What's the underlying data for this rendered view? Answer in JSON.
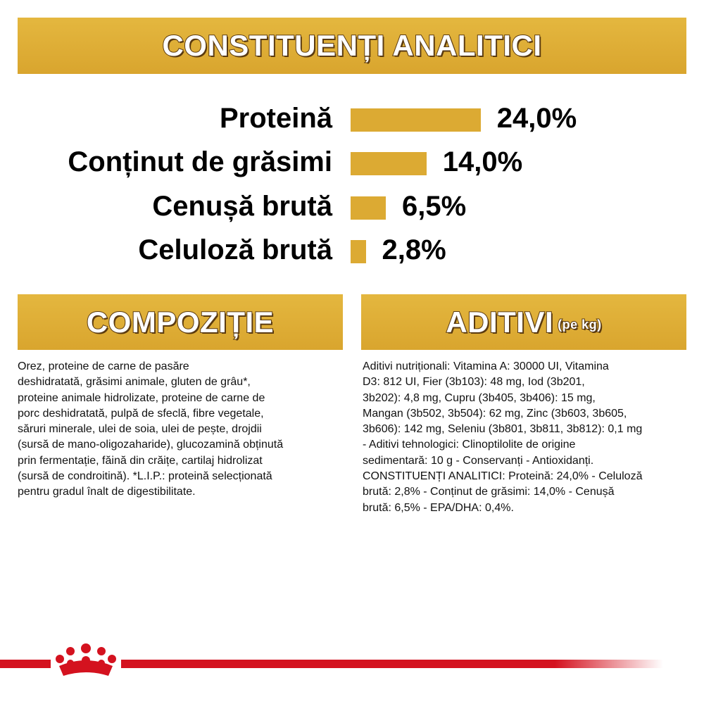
{
  "header": {
    "title": "CONSTITUENȚI ANALITICI"
  },
  "nutrients": [
    {
      "label": "Proteină",
      "value": 24.0,
      "value_label": "24,0%"
    },
    {
      "label": "Conținut de grăsimi",
      "value": 14.0,
      "value_label": "14,0%"
    },
    {
      "label": "Cenușă brută",
      "value": 6.5,
      "value_label": "6,5%"
    },
    {
      "label": "Celuloză brută",
      "value": 2.8,
      "value_label": "2,8%"
    }
  ],
  "composition": {
    "title": "COMPOZIȚIE",
    "lines": [
      "Orez, proteine de carne de pasăre",
      "deshidratată, grăsimi animale, gluten de grâu*,",
      "proteine animale hidrolizate, proteine de carne de",
      "porc deshidratată, pulpă de sfeclă, fibre vegetale,",
      "săruri minerale, ulei de soia, ulei de pește, drojdii",
      "(sursă de mano-oligozaharide), glucozamină obținută",
      "prin fermentație, făină din crăițe, cartilaj hidrolizat",
      "(sursă de condroitină). *L.I.P.: proteină selecționată",
      "pentru gradul înalt de digestibilitate."
    ]
  },
  "additives": {
    "title": "ADITIVI",
    "subtitle": "(pe kg)",
    "lines": [
      "Aditivi nutriționali: Vitamina A: 30000 UI, Vitamina",
      "D3: 812 UI, Fier (3b103): 48 mg, Iod (3b201,",
      "3b202): 4,8 mg, Cupru (3b405, 3b406): 15 mg,",
      "Mangan (3b502, 3b504): 62 mg, Zinc (3b603, 3b605,",
      "3b606): 142 mg, Seleniu (3b801, 3b811, 3b812): 0,1 mg",
      "- Aditivi tehnologici: Clinoptilolite de origine",
      "sedimentară: 10 g - Conservanți - Antioxidanți.",
      "CONSTITUENȚI ANALITICI: Proteină: 24,0% - Celuloză",
      "brută: 2,8% - Conținut de grăsimi: 14,0% - Cenușă",
      "brută: 6,5% - EPA/DHA: 0,4%."
    ]
  }
}
